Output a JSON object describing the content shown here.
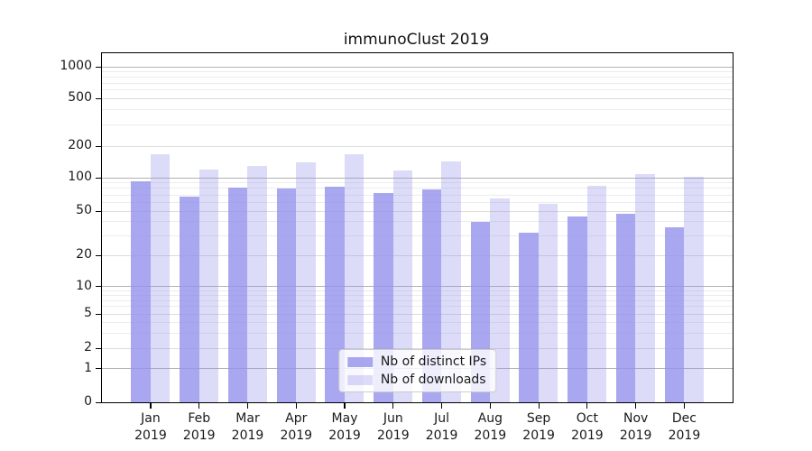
{
  "chart_data": {
    "type": "bar",
    "title": "immunoClust 2019",
    "categories": [
      "Jan",
      "Feb",
      "Mar",
      "Apr",
      "May",
      "Jun",
      "Jul",
      "Aug",
      "Sep",
      "Oct",
      "Nov",
      "Dec"
    ],
    "year": "2019",
    "series": [
      {
        "name": "Nb of distinct IPs",
        "color": "rgba(148,145,235,0.8)",
        "values": [
          92,
          67,
          82,
          80,
          83,
          73,
          78,
          40,
          32,
          45,
          47,
          36
        ]
      },
      {
        "name": "Nb of downloads",
        "color": "rgba(148,145,235,0.33)",
        "values": [
          168,
          120,
          130,
          140,
          168,
          117,
          143,
          65,
          58,
          85,
          108,
          103
        ]
      }
    ],
    "yticks": [
      0,
      1,
      2,
      5,
      10,
      20,
      50,
      100,
      200,
      500,
      1000
    ],
    "yscale": "symlog",
    "ylim": [
      0,
      1400
    ],
    "grid": true,
    "legend_position": "lower center inside",
    "colors": {
      "bar_base": "#9491eb",
      "major_grid": "#b2b2b2",
      "minor_grid": "#ececec",
      "spine": "#000000"
    }
  }
}
